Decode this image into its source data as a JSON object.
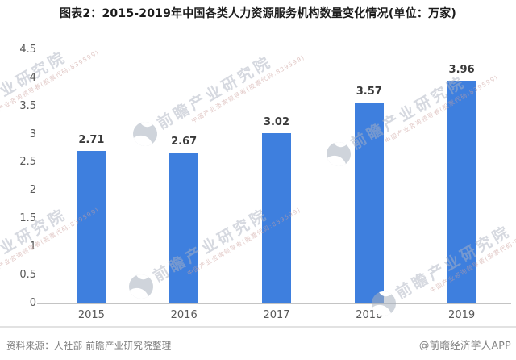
{
  "title": "图表2：2015-2019年中国各类人力资源服务机构数量变化情况(单位：万家)",
  "chart_data": {
    "type": "bar",
    "title": "2015-2019年中国各类人力资源服务机构数量变化情况",
    "unit": "万家",
    "categories": [
      "2015",
      "2016",
      "2017",
      "2018",
      "2019"
    ],
    "values": [
      2.71,
      2.67,
      3.02,
      3.57,
      3.96
    ],
    "value_labels": [
      "2.71",
      "2.67",
      "3.02",
      "3.57",
      "3.96"
    ],
    "xlabel": "",
    "ylabel": "",
    "ylim": [
      0,
      4.5
    ],
    "yticks": [
      0,
      0.5,
      1,
      1.5,
      2,
      2.5,
      3,
      3.5,
      4,
      4.5
    ],
    "grid": false,
    "legend": false,
    "bar_color": "#3E7FDE"
  },
  "footer": {
    "source": "资料来源：人社部 前瞻产业研究院整理",
    "credit": "@前瞻经济学人APP"
  },
  "watermark": {
    "brand": "前瞻产业研究院",
    "subtext": "中国产业咨询领导者(股票代码:839599)"
  },
  "colors": {
    "bar": "#3E7FDE",
    "title_text": "#1c1c1c",
    "axis_text": "#595959",
    "value_text": "#3a3a3a",
    "footer_text": "#7d7d7d",
    "axis_line": "#c4c4c4",
    "separator": "#e2e2e2",
    "background": "#ffffff"
  }
}
